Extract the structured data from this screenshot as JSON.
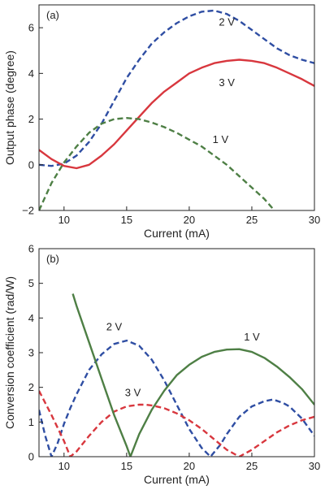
{
  "colors": {
    "blue": "#2f4ea3",
    "red": "#d8373e",
    "green": "#4e7f45",
    "axis": "#222222"
  },
  "chart_data": [
    {
      "type": "line",
      "panel_label": "(a)",
      "xlabel": "Current (mA)",
      "ylabel": "Output phase (degree)",
      "xlim": [
        8,
        30
      ],
      "ylim": [
        -2,
        7
      ],
      "xticks": [
        10,
        15,
        20,
        25,
        30
      ],
      "yticks": [
        -2,
        0,
        2,
        4,
        6
      ],
      "series": [
        {
          "name": "2 V",
          "color": "#2f4ea3",
          "dash": true,
          "x": [
            8,
            9,
            10,
            11,
            12,
            13,
            14,
            15,
            16,
            17,
            18,
            19,
            20,
            21,
            22,
            23,
            24,
            25,
            26,
            27,
            28,
            29,
            30
          ],
          "y": [
            0.0,
            -0.05,
            0.05,
            0.4,
            1.0,
            1.8,
            2.8,
            3.8,
            4.6,
            5.3,
            5.8,
            6.2,
            6.5,
            6.7,
            6.75,
            6.6,
            6.3,
            5.9,
            5.5,
            5.1,
            4.8,
            4.6,
            4.45
          ]
        },
        {
          "name": "3 V",
          "color": "#d8373e",
          "dash": false,
          "x": [
            8,
            9,
            10,
            11,
            12,
            13,
            14,
            15,
            16,
            17,
            18,
            19,
            20,
            21,
            22,
            23,
            24,
            25,
            26,
            27,
            28,
            29,
            30
          ],
          "y": [
            0.65,
            0.25,
            -0.05,
            -0.15,
            0.0,
            0.4,
            0.9,
            1.5,
            2.1,
            2.7,
            3.2,
            3.6,
            4.0,
            4.25,
            4.45,
            4.55,
            4.6,
            4.55,
            4.45,
            4.25,
            4.0,
            3.75,
            3.45
          ]
        },
        {
          "name": "1 V",
          "color": "#4e7f45",
          "dash": true,
          "x": [
            8,
            9,
            10,
            11,
            12,
            13,
            14,
            15,
            16,
            17,
            18,
            19,
            20,
            21,
            22,
            23,
            24,
            25,
            26,
            26.8
          ],
          "y": [
            -2.0,
            -0.8,
            0.1,
            0.8,
            1.4,
            1.8,
            2.0,
            2.05,
            2.0,
            1.85,
            1.65,
            1.4,
            1.1,
            0.8,
            0.4,
            0.0,
            -0.5,
            -1.0,
            -1.5,
            -2.0
          ]
        }
      ]
    },
    {
      "type": "line",
      "panel_label": "(b)",
      "xlabel": "Current (mA)",
      "ylabel": "Conversion coefficient (rad/W)",
      "xlim": [
        8,
        30
      ],
      "ylim": [
        0,
        6
      ],
      "xticks": [
        10,
        15,
        20,
        25,
        30
      ],
      "yticks": [
        0,
        1,
        2,
        3,
        4,
        5,
        6
      ],
      "series": [
        {
          "name": "2 V",
          "color": "#2f4ea3",
          "dash": true,
          "x": [
            8,
            8.5,
            9,
            9.5,
            10,
            10.5,
            11,
            12,
            13,
            14,
            15,
            16,
            17,
            18,
            19,
            20,
            21,
            21.7,
            22.5,
            23,
            24,
            25,
            26,
            26.7,
            27.5,
            28,
            29,
            30
          ],
          "y": [
            1.35,
            0.6,
            0.0,
            0.4,
            0.95,
            1.4,
            1.8,
            2.5,
            2.95,
            3.25,
            3.35,
            3.2,
            2.8,
            2.2,
            1.5,
            0.8,
            0.25,
            0.0,
            0.35,
            0.65,
            1.15,
            1.45,
            1.6,
            1.65,
            1.55,
            1.45,
            1.1,
            0.6
          ]
        },
        {
          "name": "3 V",
          "color": "#d8373e",
          "dash": true,
          "x": [
            8,
            9,
            10,
            10.5,
            11,
            12,
            13,
            14,
            15,
            16,
            16.5,
            17,
            18,
            19,
            20,
            21,
            22,
            23,
            24,
            25,
            26,
            27,
            28,
            29,
            30
          ],
          "y": [
            1.9,
            1.2,
            0.45,
            0.0,
            0.15,
            0.6,
            1.0,
            1.3,
            1.45,
            1.5,
            1.5,
            1.48,
            1.4,
            1.25,
            1.05,
            0.8,
            0.5,
            0.2,
            0.0,
            0.2,
            0.45,
            0.7,
            0.9,
            1.05,
            1.15
          ]
        },
        {
          "name": "1 V",
          "color": "#4e7f45",
          "dash": false,
          "x": [
            10.7,
            11,
            12,
            13,
            14,
            15,
            15.3,
            16,
            17,
            18,
            19,
            20,
            21,
            22,
            23,
            24,
            25,
            26,
            27,
            28,
            29,
            30
          ],
          "y": [
            4.7,
            4.35,
            3.3,
            2.25,
            1.2,
            0.3,
            0.0,
            0.65,
            1.35,
            1.9,
            2.35,
            2.65,
            2.88,
            3.02,
            3.09,
            3.1,
            3.02,
            2.85,
            2.6,
            2.3,
            1.95,
            1.5
          ]
        }
      ]
    }
  ],
  "annotations": [
    {
      "text": "2 V",
      "panel": 0,
      "x": 23.0,
      "y": 6.1
    },
    {
      "text": "3 V",
      "panel": 0,
      "x": 23.0,
      "y": 3.45
    },
    {
      "text": "1 V",
      "panel": 0,
      "x": 22.5,
      "y": 0.95
    },
    {
      "text": "2 V",
      "panel": 1,
      "x": 14.0,
      "y": 3.65
    },
    {
      "text": "3 V",
      "panel": 1,
      "x": 15.5,
      "y": 1.75
    },
    {
      "text": "1 V",
      "panel": 1,
      "x": 25.0,
      "y": 3.35
    }
  ]
}
